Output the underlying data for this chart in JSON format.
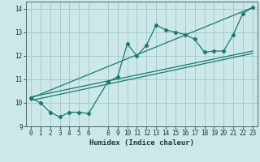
{
  "xlabel": "Humidex (Indice chaleur)",
  "bg_color": "#cce8e8",
  "grid_color": "#a8cccc",
  "line_color": "#1a7a70",
  "xlim": [
    -0.5,
    23.5
  ],
  "ylim": [
    9.0,
    14.3
  ],
  "xticks": [
    0,
    1,
    2,
    3,
    4,
    5,
    6,
    8,
    9,
    10,
    11,
    12,
    13,
    14,
    15,
    16,
    17,
    18,
    19,
    20,
    21,
    22,
    23
  ],
  "yticks": [
    9,
    10,
    11,
    12,
    13,
    14
  ],
  "scatter_x": [
    0,
    1,
    2,
    3,
    4,
    5,
    6,
    8,
    9,
    10,
    11,
    12,
    13,
    14,
    15,
    16,
    17,
    18,
    19,
    20,
    21,
    22,
    23
  ],
  "scatter_y": [
    10.2,
    10.0,
    9.6,
    9.4,
    9.6,
    9.6,
    9.55,
    10.9,
    11.1,
    12.5,
    12.0,
    12.45,
    13.3,
    13.1,
    13.0,
    12.9,
    12.7,
    12.15,
    12.2,
    12.2,
    12.9,
    13.8,
    14.05
  ],
  "line1_x": [
    0,
    23
  ],
  "line1_y": [
    10.2,
    14.05
  ],
  "line2_x": [
    0,
    23
  ],
  "line2_y": [
    10.25,
    12.2
  ],
  "line3_x": [
    0,
    23
  ],
  "line3_y": [
    10.1,
    12.1
  ]
}
